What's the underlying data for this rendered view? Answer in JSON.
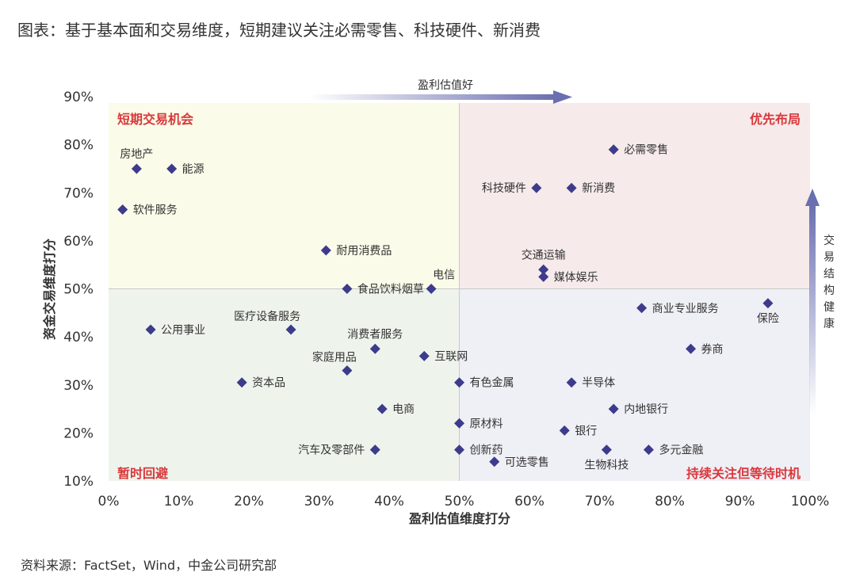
{
  "figure": {
    "title": "图表：基于基本面和交易维度，短期建议关注必需零售、科技硬件、新消费",
    "source": "资料来源：FactSet，Wind，中金公司研究部"
  },
  "colors": {
    "marker": "#3d3b8c",
    "quadrant_label": "#d9383b",
    "arrow": "#6a6fb0",
    "top_left_bg": "#fbfbe9",
    "top_right_bg": "#f6eaea",
    "bottom_left_bg": "#eef4ec",
    "bottom_right_bg": "#efeff6"
  },
  "chart_data": {
    "type": "scatter",
    "xlabel": "盈利估值维度打分",
    "ylabel": "资金交易维度打分",
    "xlim": [
      0,
      100
    ],
    "ylim": [
      10,
      90
    ],
    "x_ticks": [
      "0%",
      "10%",
      "20%",
      "30%",
      "40%",
      "50%",
      "60%",
      "70%",
      "80%",
      "90%",
      "100%"
    ],
    "y_ticks": [
      "10%",
      "20%",
      "30%",
      "40%",
      "50%",
      "60%",
      "70%",
      "80%",
      "90%"
    ],
    "divider": {
      "x": 50,
      "y": 50
    },
    "quadrants": {
      "top_left": "短期交易机会",
      "top_right": "优先布局",
      "bottom_left": "暂时回避",
      "bottom_right": "持续关注但等待时机"
    },
    "arrows": {
      "horizontal": "盈利估值好",
      "vertical": "交易结构健康"
    },
    "points": [
      {
        "label": "房地产",
        "x": 4,
        "y": 75,
        "pos": "above"
      },
      {
        "label": "能源",
        "x": 9,
        "y": 75,
        "pos": "right"
      },
      {
        "label": "软件服务",
        "x": 2,
        "y": 66.5,
        "pos": "right"
      },
      {
        "label": "必需零售",
        "x": 72,
        "y": 79,
        "pos": "right"
      },
      {
        "label": "科技硬件",
        "x": 61,
        "y": 71,
        "pos": "left"
      },
      {
        "label": "新消费",
        "x": 66,
        "y": 71,
        "pos": "right"
      },
      {
        "label": "耐用消费品",
        "x": 31,
        "y": 58,
        "pos": "right"
      },
      {
        "label": "交通运输",
        "x": 62,
        "y": 54,
        "pos": "above"
      },
      {
        "label": "媒体娱乐",
        "x": 62,
        "y": 52.5,
        "pos": "right"
      },
      {
        "label": "食品饮料烟草",
        "x": 34,
        "y": 50,
        "pos": "right"
      },
      {
        "label": "电信",
        "x": 46,
        "y": 50,
        "pos": "aboveright"
      },
      {
        "label": "商业专业服务",
        "x": 76,
        "y": 46,
        "pos": "right"
      },
      {
        "label": "保险",
        "x": 94,
        "y": 47,
        "pos": "below"
      },
      {
        "label": "公用事业",
        "x": 6,
        "y": 41.5,
        "pos": "right"
      },
      {
        "label": "医疗设备服务",
        "x": 26,
        "y": 41.5,
        "pos": "aboveleft"
      },
      {
        "label": "消费者服务",
        "x": 38,
        "y": 37.5,
        "pos": "above"
      },
      {
        "label": "券商",
        "x": 83,
        "y": 37.5,
        "pos": "right"
      },
      {
        "label": "互联网",
        "x": 45,
        "y": 36,
        "pos": "right"
      },
      {
        "label": "家庭用品",
        "x": 34,
        "y": 33,
        "pos": "aboveleft"
      },
      {
        "label": "资本品",
        "x": 19,
        "y": 30.5,
        "pos": "right"
      },
      {
        "label": "有色金属",
        "x": 50,
        "y": 30.5,
        "pos": "right"
      },
      {
        "label": "半导体",
        "x": 66,
        "y": 30.5,
        "pos": "right"
      },
      {
        "label": "电商",
        "x": 39,
        "y": 25,
        "pos": "right"
      },
      {
        "label": "内地银行",
        "x": 72,
        "y": 25,
        "pos": "right"
      },
      {
        "label": "原材料",
        "x": 50,
        "y": 22,
        "pos": "right"
      },
      {
        "label": "银行",
        "x": 65,
        "y": 20.5,
        "pos": "right"
      },
      {
        "label": "汽车及零部件",
        "x": 38,
        "y": 16.5,
        "pos": "left"
      },
      {
        "label": "创新药",
        "x": 50,
        "y": 16.5,
        "pos": "right"
      },
      {
        "label": "生物科技",
        "x": 71,
        "y": 16.5,
        "pos": "below"
      },
      {
        "label": "多元金融",
        "x": 77,
        "y": 16.5,
        "pos": "right"
      },
      {
        "label": "可选零售",
        "x": 55,
        "y": 14,
        "pos": "right"
      }
    ]
  }
}
